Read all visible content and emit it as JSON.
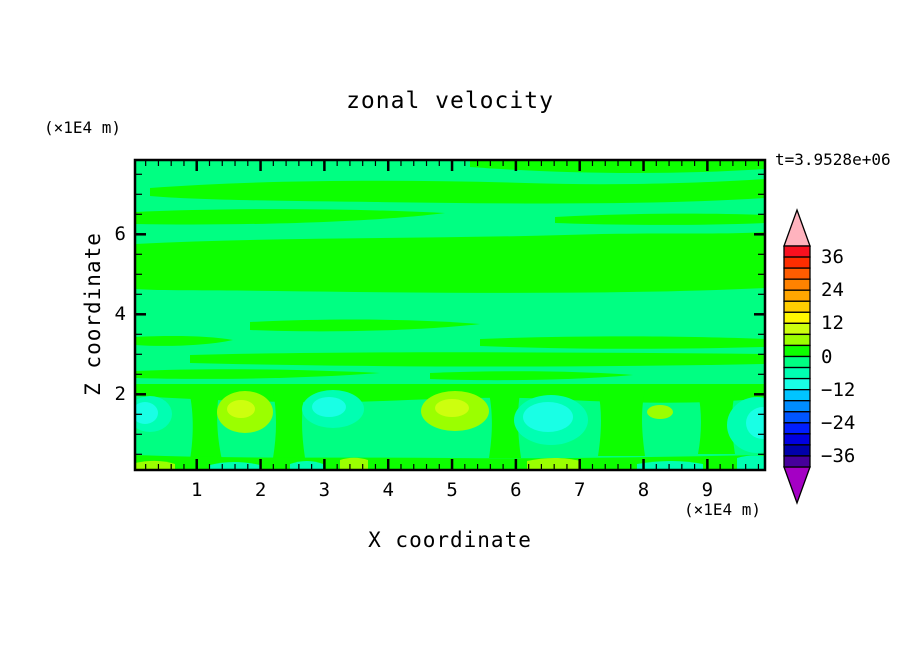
{
  "title": "zonal velocity",
  "annotations": {
    "time_label": "t=3.9528e+06",
    "y_axis_unit": "(×1E4 m)",
    "x_axis_unit": "(×1E4 m)"
  },
  "axes": {
    "x": {
      "label": "X coordinate",
      "range": [
        0,
        9.87
      ],
      "tick_labels": [
        "1",
        "2",
        "3",
        "4",
        "5",
        "6",
        "7",
        "8",
        "9"
      ],
      "major_tick_values": [
        1,
        2,
        3,
        4,
        5,
        6,
        7,
        8,
        9
      ],
      "minor_tick_step": 0.2
    },
    "y": {
      "label": "Z coordinate",
      "range": [
        0.11,
        7.86
      ],
      "tick_labels": [
        "2",
        "4",
        "6"
      ],
      "major_tick_values": [
        2,
        4,
        6
      ],
      "minor_tick_step": 0.5
    }
  },
  "colorbar": {
    "tick_labels": [
      "36",
      "24",
      "12",
      "0",
      "−12",
      "−24",
      "−36"
    ],
    "tick_values": [
      36,
      24,
      12,
      0,
      -12,
      -24,
      -36
    ],
    "over_arrow_color": "#FFB3BE",
    "under_arrow_color": "#A400C4",
    "bands": [
      {
        "range": [
          36,
          40
        ],
        "color": "#F8101F"
      },
      {
        "range": [
          32,
          36
        ],
        "color": "#FE2D00"
      },
      {
        "range": [
          28,
          32
        ],
        "color": "#FF5C00"
      },
      {
        "range": [
          24,
          28
        ],
        "color": "#FF8200"
      },
      {
        "range": [
          20,
          24
        ],
        "color": "#FFA600"
      },
      {
        "range": [
          16,
          20
        ],
        "color": "#FFCD00"
      },
      {
        "range": [
          12,
          16
        ],
        "color": "#FFF700"
      },
      {
        "range": [
          8,
          12
        ],
        "color": "#CDFF0E"
      },
      {
        "range": [
          4,
          8
        ],
        "color": "#9BFF00"
      },
      {
        "range": [
          0,
          4
        ],
        "color": "#0DFF00"
      },
      {
        "range": [
          -4,
          0
        ],
        "color": "#00FF82"
      },
      {
        "range": [
          -8,
          -4
        ],
        "color": "#00FFB2"
      },
      {
        "range": [
          -12,
          -8
        ],
        "color": "#19FFE5"
      },
      {
        "range": [
          -16,
          -12
        ],
        "color": "#00C4FF"
      },
      {
        "range": [
          -20,
          -16
        ],
        "color": "#008CFF"
      },
      {
        "range": [
          -24,
          -20
        ],
        "color": "#0055FF"
      },
      {
        "range": [
          -28,
          -24
        ],
        "color": "#001EFF"
      },
      {
        "range": [
          -32,
          -28
        ],
        "color": "#0000E0"
      },
      {
        "range": [
          -36,
          -32
        ],
        "color": "#0000AA"
      },
      {
        "range": [
          -40,
          -36
        ],
        "color": "#46009B"
      }
    ]
  },
  "chart_data": {
    "type": "heatmap",
    "subtype": "filled-contour",
    "title": "zonal velocity",
    "time_annotation": "t=3.9528e+06",
    "xlabel": "X coordinate",
    "x_units": "(×1E4 m)",
    "xlim": [
      0,
      9.87
    ],
    "x_labeled_ticks": [
      1,
      2,
      3,
      4,
      5,
      6,
      7,
      8,
      9
    ],
    "x_minor_tick_step": 0.2,
    "ylabel": "Z coordinate",
    "y_units": "(×1E4 m)",
    "ylim": [
      0.11,
      7.86
    ],
    "y_labeled_ticks": [
      2,
      4,
      6
    ],
    "y_minor_tick_step": 0.5,
    "contour_interval": 4,
    "contour_levels_min": -40,
    "contour_levels_max": 40,
    "colorbar_labels": [
      36,
      24,
      12,
      0,
      -12,
      -24,
      -36
    ],
    "legend_position": "right-vertical-colorbar-with-over-under-arrows",
    "grid": false,
    "field_colors": {
      "band_0_4": "#0DFF00",
      "band_m4_0": "#00FF82",
      "band_m8_m4": "#00FFB2",
      "band_m12_m8": "#19FFE5",
      "band_4_8": "#9BFF00",
      "band_8_12": "#CDFF0E"
    },
    "field_summary": {
      "dominant_value_range": [
        -8,
        8
      ],
      "description": "Horizontally banded zonal flow. Upper two-thirds alternates between 0..4 (green) and -4..0 (spring green) in long thin streaks, with a wide solid 0..4 band near z=4.5-5.5. Near z=1 a wave train of closed cells: negative cells reaching -12..-4 (turquoise with cyan cores) near x=0.1, 3.3, 5.5, 9.7 and positive cells reaching 4..12 (yellow-green) near x=2.4, 4.5, 6.6; thin patches of both signs hug the bottom boundary."
    }
  }
}
